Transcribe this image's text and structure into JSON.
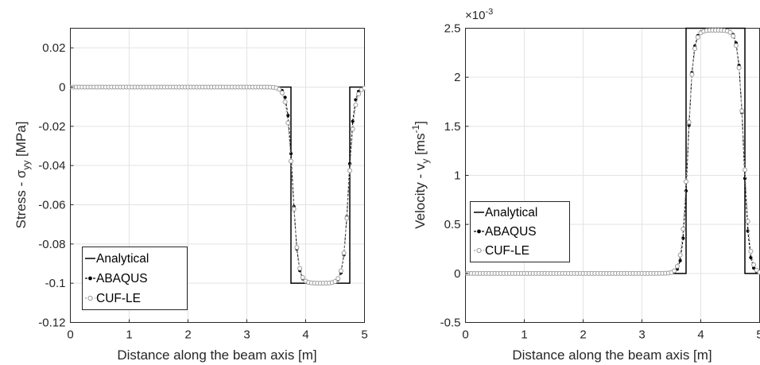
{
  "colors": {
    "analytical": "#000000",
    "abaqus": "#000000",
    "cuf": "#9a9a9a",
    "grid": "#e3e3e3",
    "axis": "#262626"
  },
  "chart_data": [
    {
      "type": "line",
      "xlabel": "Distance along the beam axis [m]",
      "ylabel_main": "Stress - σ",
      "ylabel_sub": "yy",
      "ylabel_unit": " [MPa]",
      "xlim": [
        0,
        5
      ],
      "ylim": [
        -0.12,
        0.03
      ],
      "xticks": [
        0,
        1,
        2,
        3,
        4,
        5
      ],
      "xtick_labels": [
        "0",
        "1",
        "2",
        "3",
        "4",
        "5"
      ],
      "yticks": [
        -0.12,
        -0.1,
        -0.08,
        -0.06,
        -0.04,
        -0.02,
        0,
        0.02
      ],
      "ytick_labels": [
        "-0.12",
        "-0.1",
        "-0.08",
        "-0.06",
        "-0.04",
        "-0.02",
        "0",
        "0.02"
      ],
      "grid": true,
      "legend_position": "bottom-left",
      "legend": [
        "Analytical",
        "ABAQUS",
        "CUF-LE"
      ],
      "series": [
        {
          "name": "Analytical",
          "x": [
            0,
            3.75,
            3.75,
            4.75,
            4.75,
            5
          ],
          "y": [
            0,
            0,
            -0.1,
            -0.1,
            0,
            0
          ]
        },
        {
          "name": "ABAQUS",
          "x_start": 0,
          "x_end": 5,
          "n_points": 101,
          "base": 0,
          "amplitude": -0.1,
          "rise_center": 3.78,
          "fall_center": 4.73,
          "transition_width": 0.045
        },
        {
          "name": "CUF-LE",
          "x_start": 0,
          "x_end": 5,
          "n_points": 101,
          "base": 0,
          "amplitude": -0.1,
          "rise_center": 3.775,
          "fall_center": 4.735,
          "transition_width": 0.05
        }
      ]
    },
    {
      "type": "line",
      "xlabel": "Distance along the beam axis [m]",
      "ylabel_main": "Velocity - v",
      "ylabel_sub": "y",
      "ylabel_unit": " [ms",
      "ylabel_sup": "-1",
      "ylabel_end": "]",
      "exponent_label": "×10",
      "exponent_sup": "-3",
      "xlim": [
        0,
        5
      ],
      "ylim": [
        -0.5,
        2.5
      ],
      "xticks": [
        0,
        1,
        2,
        3,
        4,
        5
      ],
      "xtick_labels": [
        "0",
        "1",
        "2",
        "3",
        "4",
        "5"
      ],
      "yticks": [
        -0.5,
        0,
        0.5,
        1,
        1.5,
        2,
        2.5
      ],
      "ytick_labels": [
        "-0.5",
        "0",
        "0.5",
        "1",
        "1.5",
        "2",
        "2.5"
      ],
      "grid": true,
      "legend_position": "middle-left",
      "legend": [
        "Analytical",
        "ABAQUS",
        "CUF-LE"
      ],
      "series": [
        {
          "name": "Analytical",
          "x": [
            0,
            3.75,
            3.75,
            4.75,
            4.75,
            5
          ],
          "y": [
            0,
            0,
            2.5,
            2.5,
            0,
            0
          ]
        },
        {
          "name": "ABAQUS",
          "x_start": 0,
          "x_end": 5,
          "n_points": 101,
          "base": 0,
          "amplitude": 2.48,
          "rise_center": 3.78,
          "fall_center": 4.73,
          "transition_width": 0.045
        },
        {
          "name": "CUF-LE",
          "x_start": 0,
          "x_end": 5,
          "n_points": 101,
          "base": 0,
          "amplitude": 2.48,
          "rise_center": 3.775,
          "fall_center": 4.735,
          "transition_width": 0.05
        }
      ]
    }
  ]
}
